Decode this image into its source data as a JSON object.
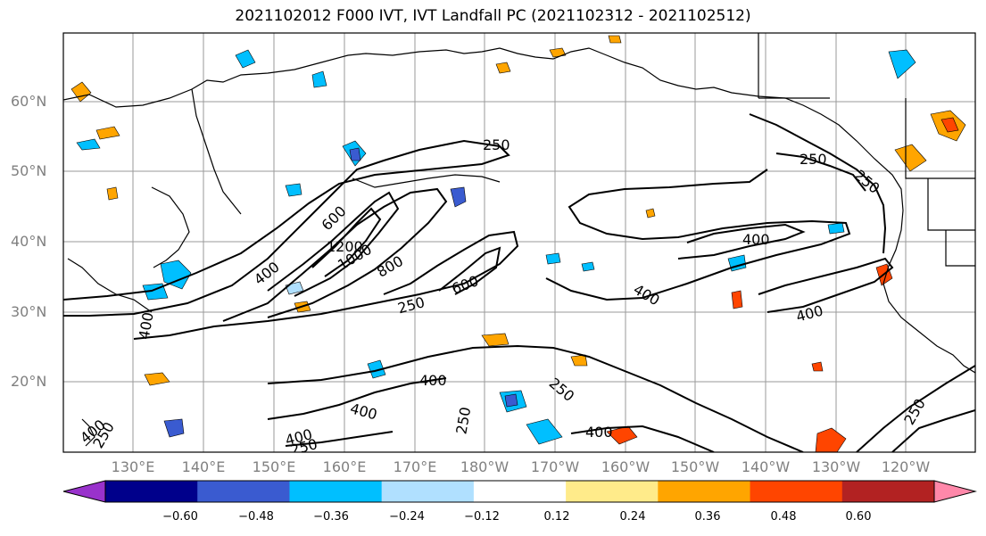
{
  "title": "2021102012 F000 IVT, IVT Landfall PC (2021102312 - 2021102512)",
  "latitude_labels": [
    "60°N",
    "50°N",
    "40°N",
    "30°N",
    "20°N"
  ],
  "longitude_labels": [
    "130°E",
    "140°E",
    "150°E",
    "160°E",
    "170°E",
    "180°W",
    "170°W",
    "160°W",
    "150°W",
    "140°W",
    "130°W",
    "120°W"
  ],
  "contour_labels": [
    "250",
    "250",
    "400",
    "600",
    "1200",
    "1000",
    "800",
    "400",
    "250",
    "600",
    "400",
    "400",
    "400",
    "400",
    "250",
    "400",
    "250",
    "400",
    "400",
    "250",
    "400",
    "250",
    "250",
    "250"
  ],
  "colorbar": {
    "colors": [
      "#9932CC",
      "#00008B",
      "#3A5BD0",
      "#00BFFF",
      "#B0E0FF",
      "#FFFFFF",
      "#FFEB8A",
      "#FFA500",
      "#FF4500",
      "#B22222",
      "#FF88AA"
    ],
    "ticks": [
      "−0.60",
      "−0.48",
      "−0.36",
      "−0.24",
      "−0.12",
      "0.12",
      "0.24",
      "0.36",
      "0.48",
      "0.60"
    ]
  }
}
